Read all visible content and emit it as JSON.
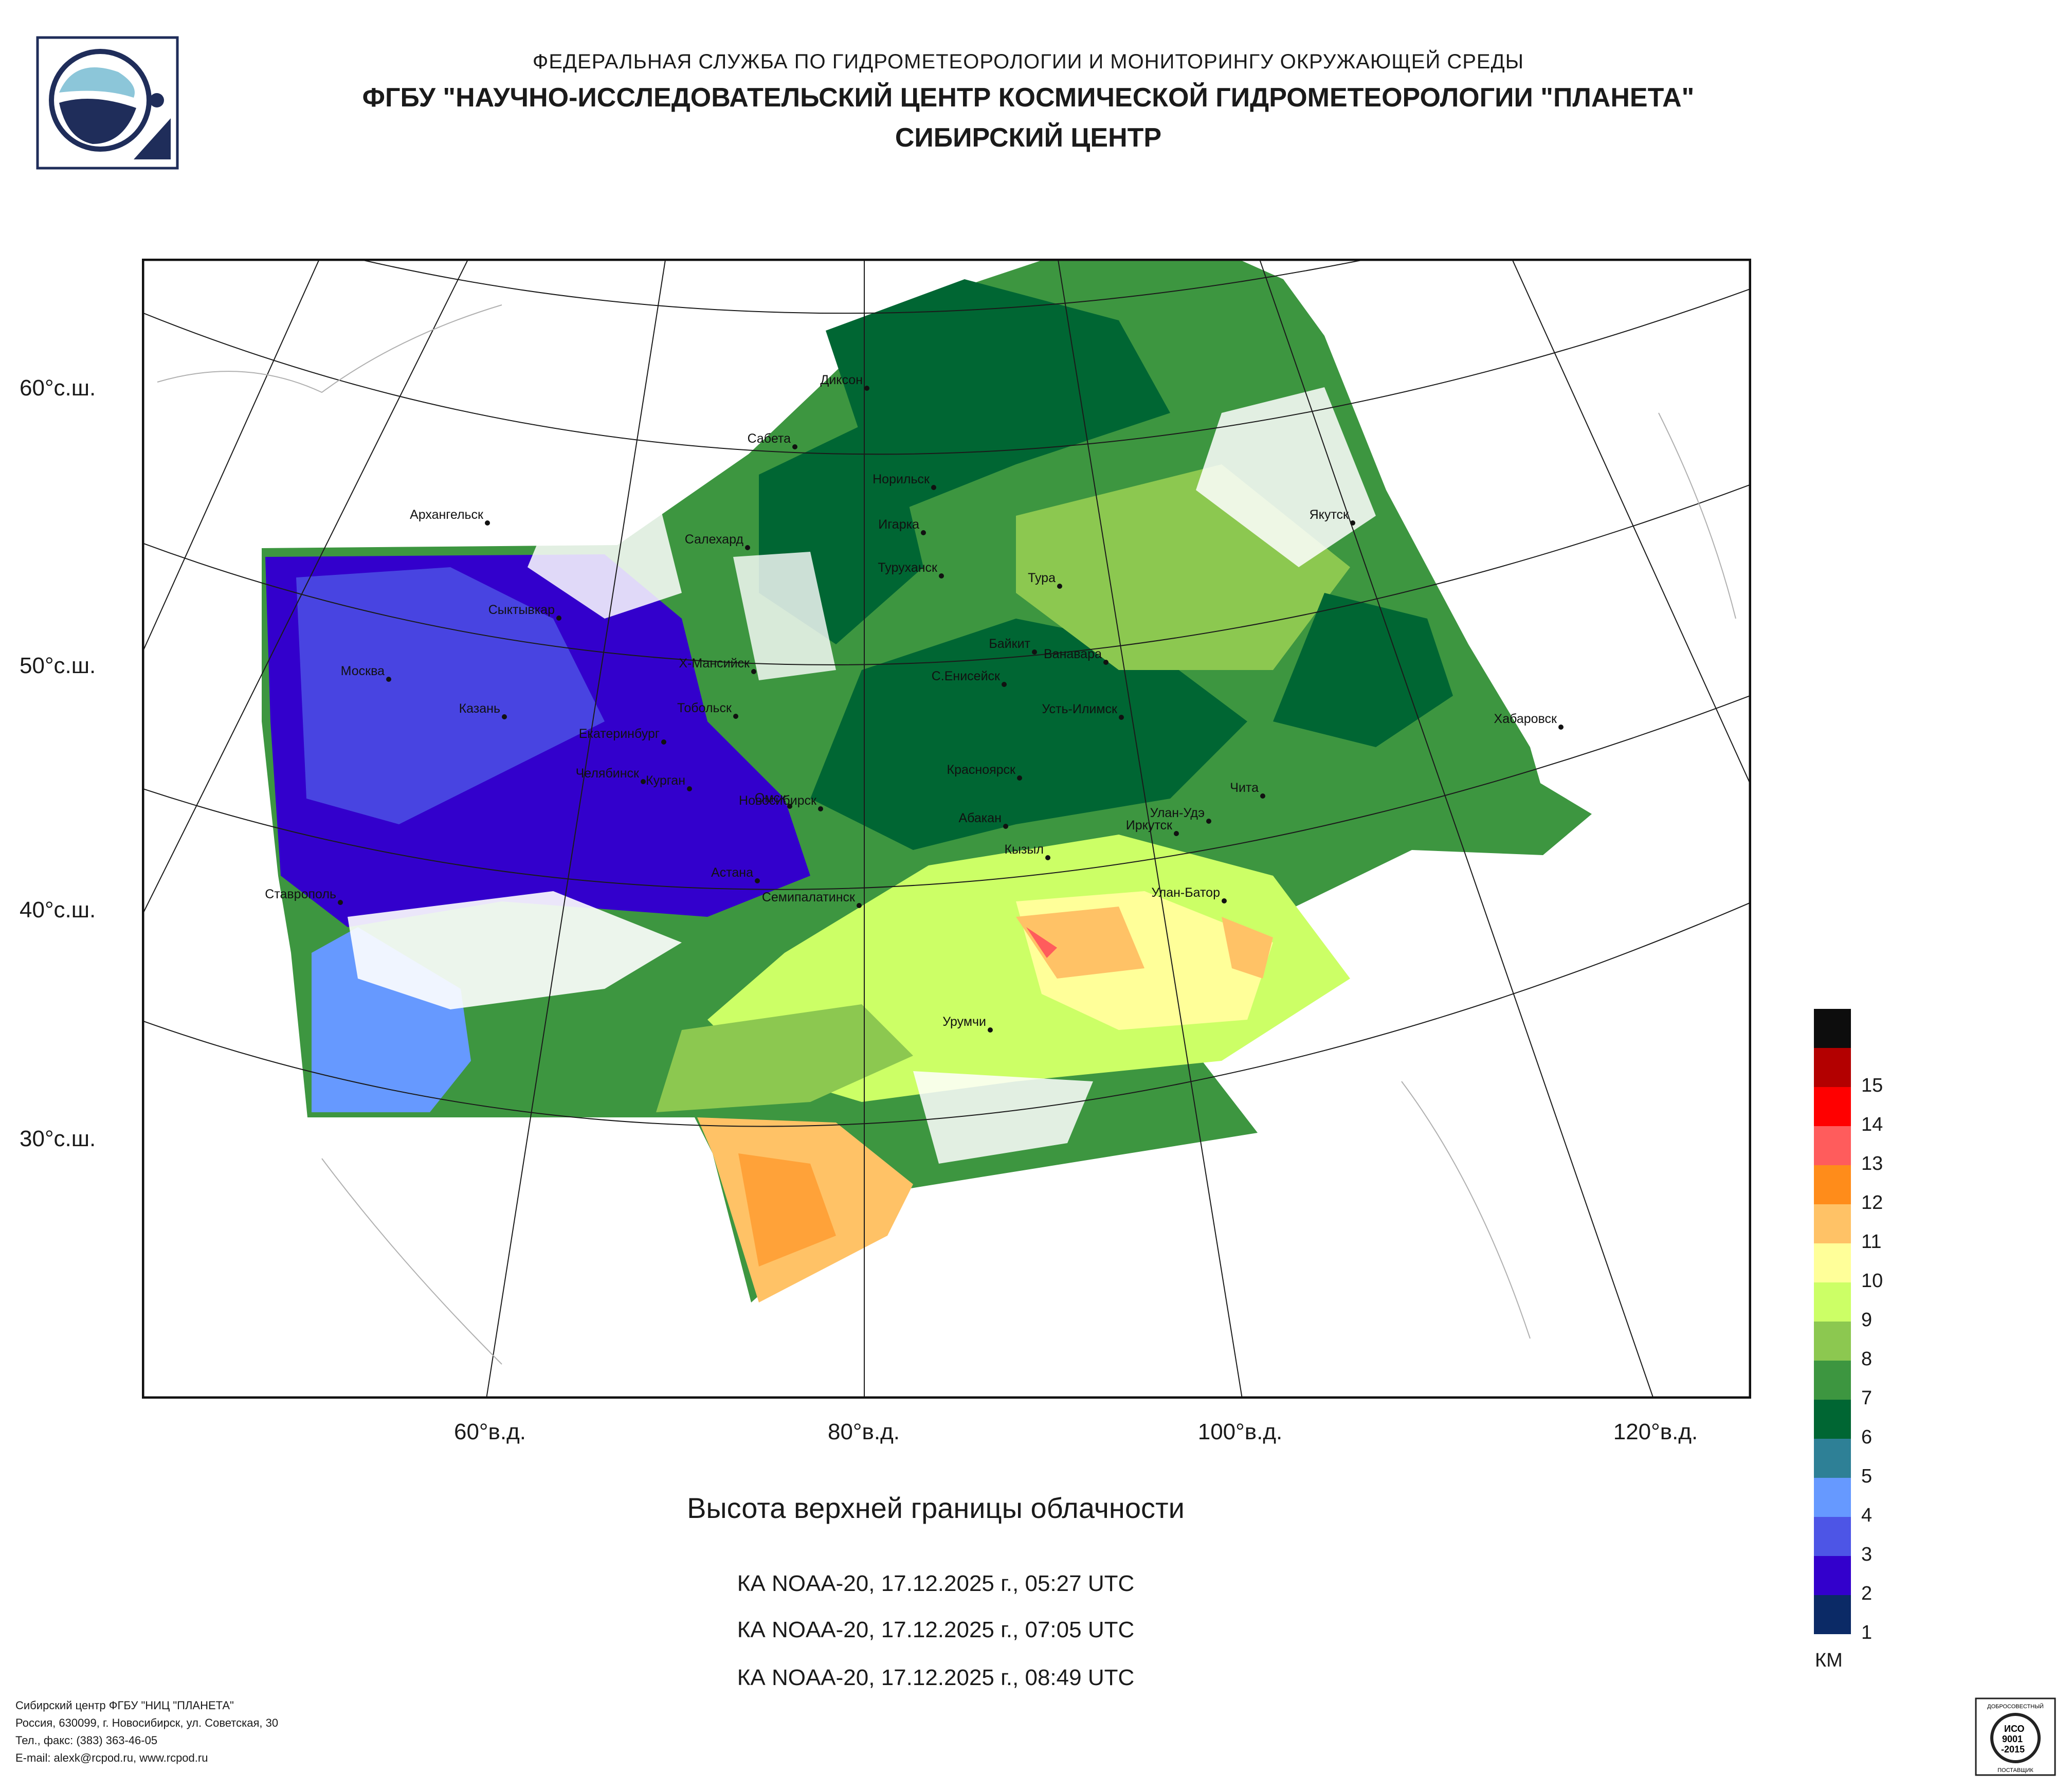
{
  "header": {
    "agency": "ФЕДЕРАЛЬНАЯ СЛУЖБА ПО ГИДРОМЕТЕОРОЛОГИИ И МОНИТОРИНГУ ОКРУЖАЮЩЕЙ СРЕДЫ",
    "center": "ФГБУ \"НАУЧНО-ИССЛЕДОВАТЕЛЬСКИЙ ЦЕНТР КОСМИЧЕСКОЙ ГИДРОМЕТЕОРОЛОГИИ \"ПЛАНЕТА\"",
    "branch": "СИБИРСКИЙ ЦЕНТР"
  },
  "map": {
    "lat_labels": [
      "60°с.ш.",
      "50°с.ш.",
      "40°с.ш.",
      "30°с.ш."
    ],
    "lon_labels": [
      "60°в.д.",
      "80°в.д.",
      "100°в.д.",
      "120°в.д."
    ],
    "cities": [
      "Диксон",
      "Сабета",
      "Норильск",
      "Архангельск",
      "Салехард",
      "Игарка",
      "Якутск",
      "Туруханск",
      "Тура",
      "Сыктывкар",
      "Байкит",
      "Ванавара",
      "Х-Мансийск",
      "Москва",
      "С.Енисейск",
      "Казань",
      "Усть-Илимск",
      "Тобольск",
      "Хабаровск",
      "Екатеринбург",
      "Красноярск",
      "Челябинск",
      "Курган",
      "Чита",
      "Омск",
      "Новосибирск",
      "Улан-Удэ",
      "Абакан",
      "Иркутск",
      "Кызыл",
      "Астана",
      "Ставрополь",
      "Семипалатинск",
      "Улан-Батор",
      "Урумчи"
    ]
  },
  "product": {
    "title": "Высота верхней границы облачности",
    "passes": [
      "КА NOAA-20, 17.12.2025 г., 05:27 UTC",
      "КА NOAA-20, 17.12.2025 г., 07:05 UTC",
      "КА NOAA-20, 17.12.2025 г., 08:49 UTC"
    ]
  },
  "legend": {
    "unit": "КМ",
    "levels": [
      {
        "label": "",
        "color": "#0d0d0d"
      },
      {
        "label": "15",
        "color": "#b30000"
      },
      {
        "label": "14",
        "color": "#ff0000"
      },
      {
        "label": "13",
        "color": "#ff5c5c"
      },
      {
        "label": "12",
        "color": "#ff8c1a"
      },
      {
        "label": "11",
        "color": "#ffc266"
      },
      {
        "label": "10",
        "color": "#ffff99"
      },
      {
        "label": "9",
        "color": "#ccff66"
      },
      {
        "label": "8",
        "color": "#8cc850"
      },
      {
        "label": "7",
        "color": "#3d9640"
      },
      {
        "label": "6",
        "color": "#006633"
      },
      {
        "label": "5",
        "color": "#2e8096"
      },
      {
        "label": "4",
        "color": "#6699ff"
      },
      {
        "label": "3",
        "color": "#4d55e6"
      },
      {
        "label": "2",
        "color": "#3300cc"
      },
      {
        "label": "1",
        "color": "#0b2a66"
      }
    ]
  },
  "footer": {
    "lines": [
      "Сибирский центр ФГБУ \"НИЦ \"ПЛАНЕТА\"",
      "Россия, 630099, г. Новосибирск, ул. Советская, 30",
      "Тел., факс: (383) 363-46-05",
      "E-mail: alexk@rcpod.ru, www.rcpod.ru"
    ],
    "iso_text": [
      "ДОБРОСОВЕСТНЫЙ",
      "ИСО",
      "9001",
      "-2015",
      "ПОСТАВЩИК"
    ]
  }
}
